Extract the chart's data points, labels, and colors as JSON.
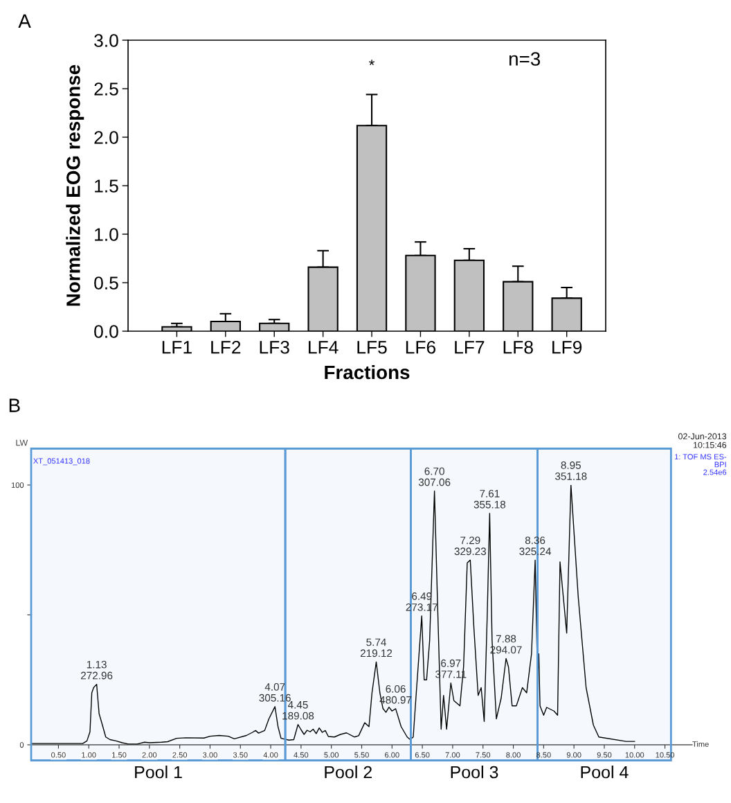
{
  "chart_data": [
    {
      "type": "bar",
      "xlabel": "Fractions",
      "ylabel": "Normalized EOG response",
      "categories": [
        "LF1",
        "LF2",
        "LF3",
        "LF4",
        "LF5",
        "LF6",
        "LF7",
        "LF8",
        "LF9"
      ],
      "values": [
        0.045,
        0.1,
        0.08,
        0.66,
        2.12,
        0.78,
        0.73,
        0.51,
        0.34
      ],
      "errors": [
        [
          0.045,
          0.08
        ],
        [
          0.1,
          0.18
        ],
        [
          0.08,
          0.12
        ],
        [
          0.66,
          0.83
        ],
        [
          2.12,
          2.44
        ],
        [
          0.78,
          0.92
        ],
        [
          0.73,
          0.85
        ],
        [
          0.51,
          0.67
        ],
        [
          0.34,
          0.45
        ]
      ],
      "color": "#c0c0c0",
      "ylim": [
        0,
        3.0
      ],
      "yticks": [
        {
          "value": 0,
          "label": "0.0"
        },
        {
          "value": 0.5,
          "label": "0.5"
        },
        {
          "value": 1.0,
          "label": "1.0"
        },
        {
          "value": 1.5,
          "label": "1.5"
        },
        {
          "value": 2.0,
          "label": "2.0"
        },
        {
          "value": 2.5,
          "label": "2.5"
        },
        {
          "value": 3.0,
          "label": "3.0"
        }
      ],
      "grid": false,
      "legend": false,
      "annotations": [
        "A",
        "*",
        "n=3"
      ]
    },
    {
      "type": "line",
      "xlabel": "Time",
      "color": "#000000",
      "x": [
        0.05,
        0.9,
        0.97,
        1.02,
        1.05,
        1.08,
        1.13,
        1.17,
        1.22,
        1.28,
        1.35,
        1.45,
        1.55,
        1.65,
        1.8,
        1.92,
        2.0,
        2.2,
        2.3,
        2.45,
        2.6,
        2.9,
        3.0,
        3.15,
        3.3,
        3.4,
        3.6,
        3.7,
        3.75,
        3.8,
        3.9,
        3.97,
        4.07,
        4.12,
        4.17,
        4.3,
        4.38,
        4.45,
        4.5,
        4.55,
        4.6,
        4.65,
        4.7,
        4.75,
        4.8,
        4.85,
        4.9,
        4.95,
        5.05,
        5.15,
        5.25,
        5.38,
        5.45,
        5.55,
        5.62,
        5.67,
        5.74,
        5.8,
        5.85,
        5.9,
        5.95,
        6.0,
        6.06,
        6.15,
        6.25,
        6.3,
        6.35,
        6.4,
        6.49,
        6.53,
        6.57,
        6.62,
        6.7,
        6.75,
        6.81,
        6.85,
        6.9,
        6.97,
        7.02,
        7.12,
        7.18,
        7.24,
        7.29,
        7.35,
        7.42,
        7.47,
        7.52,
        7.57,
        7.61,
        7.65,
        7.72,
        7.8,
        7.88,
        7.92,
        7.98,
        8.05,
        8.15,
        8.22,
        8.3,
        8.36,
        8.4,
        8.42,
        8.44,
        8.5,
        8.55,
        8.67,
        8.73,
        8.77,
        8.88,
        8.95,
        9.07,
        9.2,
        9.32,
        9.41,
        9.86,
        10.0
      ],
      "values": [
        0.5,
        0.5,
        1.5,
        5,
        20,
        22,
        23.3,
        12,
        8,
        3,
        2,
        1.5,
        0.8,
        0.3,
        0.3,
        1,
        0.8,
        1.0,
        1.2,
        2.5,
        2.7,
        2.6,
        3.3,
        3.6,
        3.3,
        2.3,
        3.6,
        4.8,
        5.5,
        4.5,
        5.5,
        10,
        14.7,
        7,
        2.5,
        1.8,
        2.0,
        7.8,
        5.8,
        4,
        5.6,
        5.0,
        6,
        4.3,
        6.5,
        4.8,
        5.5,
        3.2,
        3,
        4,
        4.6,
        3,
        3.5,
        8.5,
        7,
        20,
        31.9,
        20,
        14,
        12.5,
        14.5,
        13,
        13.9,
        7,
        3,
        2,
        3,
        20,
        49.6,
        25,
        25,
        40,
        97.7,
        55,
        6,
        19,
        6,
        23.8,
        17,
        15,
        30,
        70,
        71.1,
        45,
        19,
        22,
        9,
        50,
        89.1,
        40,
        10,
        18,
        33.2,
        30,
        15,
        15,
        22,
        20,
        35,
        71.1,
        25,
        35,
        15,
        11.4,
        14.4,
        13,
        11.4,
        70.4,
        43,
        100,
        57,
        22,
        7.6,
        3,
        1.3,
        1.3
      ],
      "xlim": [
        0.05,
        10.95
      ],
      "ylim": [
        0,
        100
      ],
      "xticks": [
        {
          "value": 0.5,
          "label": "0.50"
        },
        {
          "value": 1.0,
          "label": "1.00"
        },
        {
          "value": 1.5,
          "label": "1.50"
        },
        {
          "value": 2.0,
          "label": "2.00"
        },
        {
          "value": 2.5,
          "label": "2.50"
        },
        {
          "value": 3.0,
          "label": "3.00"
        },
        {
          "value": 3.5,
          "label": "3.50"
        },
        {
          "value": 4.0,
          "label": "4.00"
        },
        {
          "value": 4.5,
          "label": "4.50"
        },
        {
          "value": 5.0,
          "label": "5.00"
        },
        {
          "value": 5.5,
          "label": "5.50"
        },
        {
          "value": 6.0,
          "label": "6.00"
        },
        {
          "value": 6.5,
          "label": "6.50"
        },
        {
          "value": 7.0,
          "label": "7.00"
        },
        {
          "value": 7.5,
          "label": "7.50"
        },
        {
          "value": 8.0,
          "label": "8.00"
        },
        {
          "value": 8.5,
          "label": "8.50"
        },
        {
          "value": 9.0,
          "label": "9.00"
        },
        {
          "value": 9.5,
          "label": "9.50"
        },
        {
          "value": 10.0,
          "label": "10.00"
        },
        {
          "value": 10.5,
          "label": "10.50"
        }
      ],
      "yticks": [
        0,
        {
          "value": 50,
          "label": null
        },
        100
      ],
      "grid": false,
      "legend": false,
      "marker": "none",
      "line_style": "solid",
      "bands": [
        {
          "axis": "x",
          "from": 0.05,
          "to": 4.24,
          "label": "Pool 1",
          "color": "#5b9bd5"
        },
        {
          "axis": "x",
          "from": 4.24,
          "to": 6.31,
          "label": "Pool 2",
          "color": "#5b9bd5"
        },
        {
          "axis": "x",
          "from": 6.31,
          "to": 8.4,
          "label": "Pool 3",
          "color": "#5b9bd5"
        },
        {
          "axis": "x",
          "from": 8.4,
          "to": 10.6,
          "label": "Pool 4",
          "color": "#5b9bd5"
        }
      ],
      "annotations": [
        "B",
        "LW",
        "XT_051413_018",
        "02-Jun-2013\n10:15:46",
        "1: TOF MS ES-\nBPI\n2.54e6",
        {
          "text": "1.13\n272.96",
          "x": 1.13,
          "y": 23.3
        },
        {
          "text": "4.07\n305.16",
          "x": 4.07,
          "y": 14.7
        },
        {
          "text": "4.45\n189.08",
          "x": 4.45,
          "y": 7.8
        },
        {
          "text": "5.74\n219.12",
          "x": 5.74,
          "y": 31.9
        },
        {
          "text": "6.06\n480.97",
          "x": 6.06,
          "y": 13.9
        },
        {
          "text": "6.49\n273.17",
          "x": 6.49,
          "y": 49.6
        },
        {
          "text": "6.70\n307.06",
          "x": 6.7,
          "y": 97.7
        },
        {
          "text": "6.97\n377.11",
          "x": 6.97,
          "y": 23.8
        },
        {
          "text": "7.29\n329.23",
          "x": 7.29,
          "y": 71.1
        },
        {
          "text": "7.61\n355.18",
          "x": 7.61,
          "y": 89.1
        },
        {
          "text": "7.88\n294.07",
          "x": 7.88,
          "y": 33.2
        },
        {
          "text": "8.36\n325.24",
          "x": 8.36,
          "y": 71.1
        },
        {
          "text": "8.95\n351.18",
          "x": 8.95,
          "y": 100
        }
      ]
    }
  ]
}
